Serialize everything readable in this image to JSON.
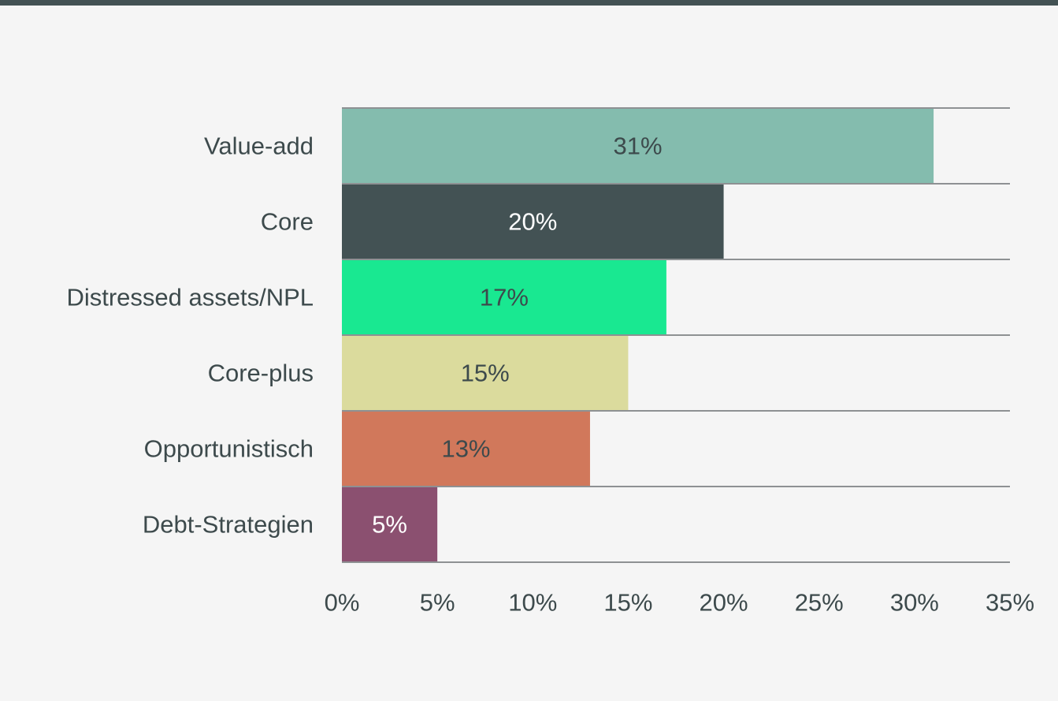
{
  "colors": {
    "top_bar": "#435254",
    "gridline": "#8e9193",
    "text": "#3d4a4c",
    "label_light": "#ffffff",
    "label_dark": "#3d4a4c"
  },
  "chart_data": {
    "type": "bar",
    "orientation": "horizontal",
    "title": "",
    "xlabel": "",
    "ylabel": "",
    "categories": [
      "Value-add",
      "Core",
      "Distressed assets/NPL",
      "Core-plus",
      "Opportunistisch",
      "Debt-Strategien"
    ],
    "values": [
      31,
      20,
      17,
      15,
      13,
      5
    ],
    "data_labels": [
      "31%",
      "20%",
      "17%",
      "15%",
      "13%",
      "5%"
    ],
    "bar_colors": [
      "#84bcae",
      "#435254",
      "#19e891",
      "#dbdb9d",
      "#d1785b",
      "#8b5070"
    ],
    "label_colors": [
      "dark",
      "light",
      "dark",
      "dark",
      "dark",
      "light"
    ],
    "xlim": [
      0,
      35
    ],
    "x_ticks": [
      0,
      5,
      10,
      15,
      20,
      25,
      30,
      35
    ],
    "x_tick_labels": [
      "0%",
      "5%",
      "10%",
      "15%",
      "20%",
      "25%",
      "30%",
      "35%"
    ],
    "grid": "horizontal",
    "legend": "none"
  }
}
